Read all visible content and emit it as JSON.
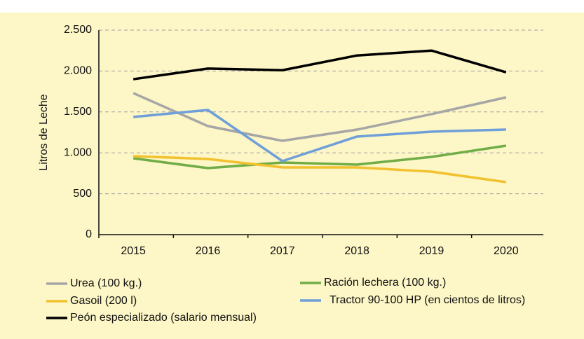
{
  "chart_data": {
    "type": "line",
    "ylabel": "Litros de Leche",
    "categories": [
      "2015",
      "2016",
      "2017",
      "2018",
      "2019",
      "2020"
    ],
    "series": [
      {
        "name": "Urea (100 kg.)",
        "color": "#a6a6a6",
        "values": [
          1730,
          1327,
          1147,
          1284,
          1473,
          1678
        ]
      },
      {
        "name": "Ración lechera (100 kg.)",
        "color": "#70ad47",
        "values": [
          933,
          813,
          882,
          856,
          950,
          1087
        ]
      },
      {
        "name": "Gasoil (200 l)",
        "color": "#f2c12e",
        "values": [
          959,
          925,
          822,
          822,
          770,
          642
        ]
      },
      {
        "name": "Tractor 90-100 HP (en cientos de litros)",
        "color": "#6f9fd8",
        "values": [
          1438,
          1524,
          899,
          1199,
          1259,
          1284
        ]
      },
      {
        "name": "Peón especializado (salario mensual)",
        "color": "#000000",
        "values": [
          1900,
          2030,
          2010,
          2190,
          2250,
          1985
        ]
      }
    ],
    "ylim": [
      0,
      2500
    ],
    "yticks": [
      0,
      500,
      {
        "value": 1000,
        "label": "1.000"
      },
      {
        "value": 1500,
        "label": "1.500"
      },
      {
        "value": 2000,
        "label": "2.000"
      },
      {
        "value": 2500,
        "label": "2.500"
      }
    ],
    "grid": true
  }
}
